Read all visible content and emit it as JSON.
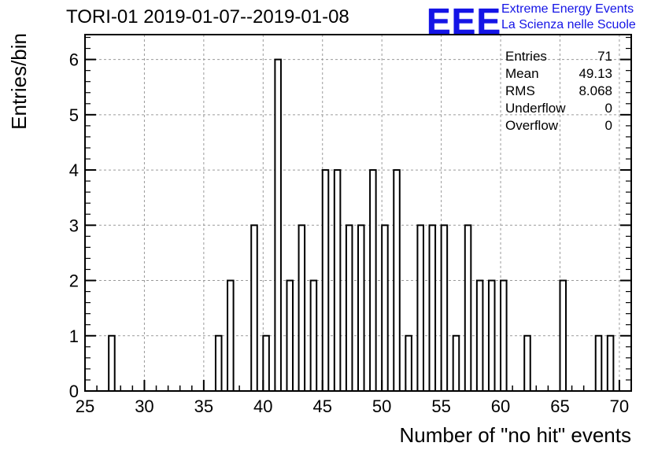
{
  "header": {
    "title": "TORI-01 2019-01-07--2019-01-08",
    "logo_text": "EEE",
    "logo_line1": "Extreme Energy Events",
    "logo_line2": "La Scienza nelle Scuole"
  },
  "stats": [
    {
      "label": "Entries",
      "value": "71"
    },
    {
      "label": "Mean",
      "value": "49.13"
    },
    {
      "label": "RMS",
      "value": "8.068"
    },
    {
      "label": "Underflow",
      "value": "0"
    },
    {
      "label": "Overflow",
      "value": "0"
    }
  ],
  "colors": {
    "logo": "#1414e6",
    "bars": "#000000",
    "grid": "#9a9a9a"
  },
  "chart_data": {
    "type": "bar",
    "histogram": true,
    "xlabel": "Number of \"no hit\" events",
    "ylabel": "Entries/bin",
    "xlim": [
      25,
      71
    ],
    "ylim": [
      0,
      6.45
    ],
    "bin_width": 0.5,
    "grid": true,
    "xticks": [
      25,
      30,
      35,
      40,
      45,
      50,
      55,
      60,
      65,
      70
    ],
    "yticks": [
      0,
      1,
      2,
      3,
      4,
      5,
      6
    ],
    "bins": [
      {
        "x": 27,
        "count": 1
      },
      {
        "x": 36,
        "count": 1
      },
      {
        "x": 37,
        "count": 2
      },
      {
        "x": 39,
        "count": 3
      },
      {
        "x": 40,
        "count": 1
      },
      {
        "x": 41,
        "count": 6
      },
      {
        "x": 42,
        "count": 2
      },
      {
        "x": 43,
        "count": 3
      },
      {
        "x": 44,
        "count": 2
      },
      {
        "x": 45,
        "count": 4
      },
      {
        "x": 46,
        "count": 4
      },
      {
        "x": 47,
        "count": 3
      },
      {
        "x": 48,
        "count": 3
      },
      {
        "x": 49,
        "count": 4
      },
      {
        "x": 50,
        "count": 3
      },
      {
        "x": 51,
        "count": 4
      },
      {
        "x": 52,
        "count": 1
      },
      {
        "x": 53,
        "count": 3
      },
      {
        "x": 54,
        "count": 3
      },
      {
        "x": 55,
        "count": 3
      },
      {
        "x": 56,
        "count": 1
      },
      {
        "x": 57,
        "count": 3
      },
      {
        "x": 58,
        "count": 2
      },
      {
        "x": 59,
        "count": 2
      },
      {
        "x": 60,
        "count": 2
      },
      {
        "x": 62,
        "count": 1
      },
      {
        "x": 65,
        "count": 2
      },
      {
        "x": 68,
        "count": 1
      },
      {
        "x": 69,
        "count": 1
      }
    ]
  }
}
